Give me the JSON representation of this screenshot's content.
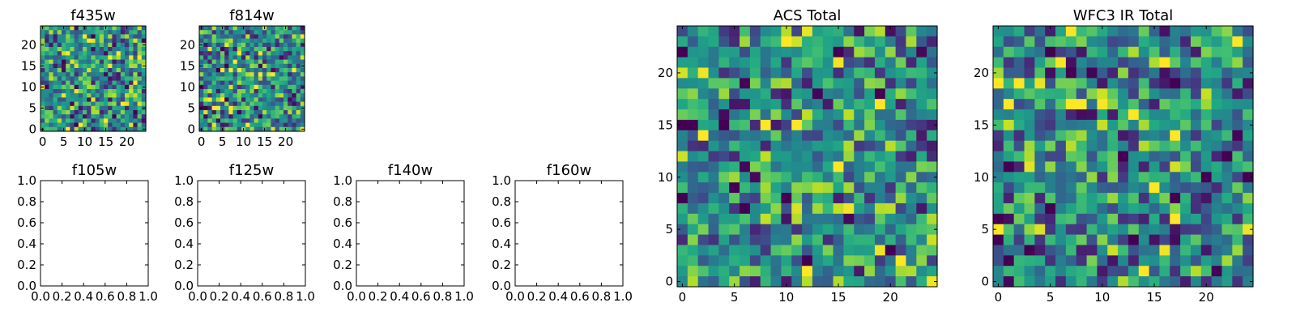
{
  "chart_data": [
    {
      "type": "heatmap",
      "title": "f435w",
      "xlabel": "",
      "ylabel": "",
      "xlim": [
        -0.5,
        24.5
      ],
      "ylim": [
        -0.5,
        24.5
      ],
      "xticks": [
        "0",
        "5",
        "10",
        "15",
        "20"
      ],
      "yticks": [
        "0",
        "5",
        "10",
        "15",
        "20"
      ],
      "grid_size": [
        25,
        25
      ],
      "colormap": "viridis",
      "seed": 435,
      "values": "25x25 grid of noise-like pixel intensities; individual values not legible"
    },
    {
      "type": "heatmap",
      "title": "f814w",
      "xlabel": "",
      "ylabel": "",
      "xlim": [
        -0.5,
        24.5
      ],
      "ylim": [
        -0.5,
        24.5
      ],
      "xticks": [
        "0",
        "5",
        "10",
        "15",
        "20"
      ],
      "yticks": [
        "0",
        "5",
        "10",
        "15",
        "20"
      ],
      "grid_size": [
        25,
        25
      ],
      "colormap": "viridis",
      "seed": 814,
      "values": "25x25 grid of noise-like pixel intensities; individual values not legible"
    },
    {
      "type": "scatter",
      "title": "f105w",
      "x": [],
      "y": [],
      "xlim": [
        0.0,
        1.0
      ],
      "ylim": [
        0.0,
        1.0
      ],
      "xticks": [
        "0.0",
        "0.2",
        "0.4",
        "0.6",
        "0.8",
        "1.0"
      ],
      "yticks": [
        "0.0",
        "0.2",
        "0.4",
        "0.6",
        "0.8",
        "1.0"
      ]
    },
    {
      "type": "scatter",
      "title": "f125w",
      "x": [],
      "y": [],
      "xlim": [
        0.0,
        1.0
      ],
      "ylim": [
        0.0,
        1.0
      ],
      "xticks": [
        "0.0",
        "0.2",
        "0.4",
        "0.6",
        "0.8",
        "1.0"
      ],
      "yticks": [
        "0.0",
        "0.2",
        "0.4",
        "0.6",
        "0.8",
        "1.0"
      ]
    },
    {
      "type": "scatter",
      "title": "f140w",
      "x": [],
      "y": [],
      "xlim": [
        0.0,
        1.0
      ],
      "ylim": [
        0.0,
        1.0
      ],
      "xticks": [
        "0.0",
        "0.2",
        "0.4",
        "0.6",
        "0.8",
        "1.0"
      ],
      "yticks": [
        "0.0",
        "0.2",
        "0.4",
        "0.6",
        "0.8",
        "1.0"
      ]
    },
    {
      "type": "scatter",
      "title": "f160w",
      "x": [],
      "y": [],
      "xlim": [
        0.0,
        1.0
      ],
      "ylim": [
        0.0,
        1.0
      ],
      "xticks": [
        "0.0",
        "0.2",
        "0.4",
        "0.6",
        "0.8",
        "1.0"
      ],
      "yticks": [
        "0.0",
        "0.2",
        "0.4",
        "0.6",
        "0.8",
        "1.0"
      ]
    },
    {
      "type": "heatmap",
      "title": "ACS Total",
      "xlabel": "",
      "ylabel": "",
      "xlim": [
        -0.5,
        24.5
      ],
      "ylim": [
        -0.5,
        24.5
      ],
      "xticks": [
        "0",
        "5",
        "10",
        "15",
        "20"
      ],
      "yticks": [
        "0",
        "5",
        "10",
        "15",
        "20"
      ],
      "grid_size": [
        25,
        25
      ],
      "colormap": "viridis",
      "seed": 1001,
      "values": "25x25 grid of noise-like pixel intensities; individual values not legible"
    },
    {
      "type": "heatmap",
      "title": "WFC3 IR Total",
      "xlabel": "",
      "ylabel": "",
      "xlim": [
        -0.5,
        24.5
      ],
      "ylim": [
        -0.5,
        24.5
      ],
      "xticks": [
        "0",
        "5",
        "10",
        "15",
        "20"
      ],
      "yticks": [
        "0",
        "5",
        "10",
        "15",
        "20"
      ],
      "grid_size": [
        25,
        25
      ],
      "colormap": "viridis",
      "seed": 2002,
      "values": "25x25 grid of noise-like pixel intensities; individual values not legible"
    }
  ]
}
